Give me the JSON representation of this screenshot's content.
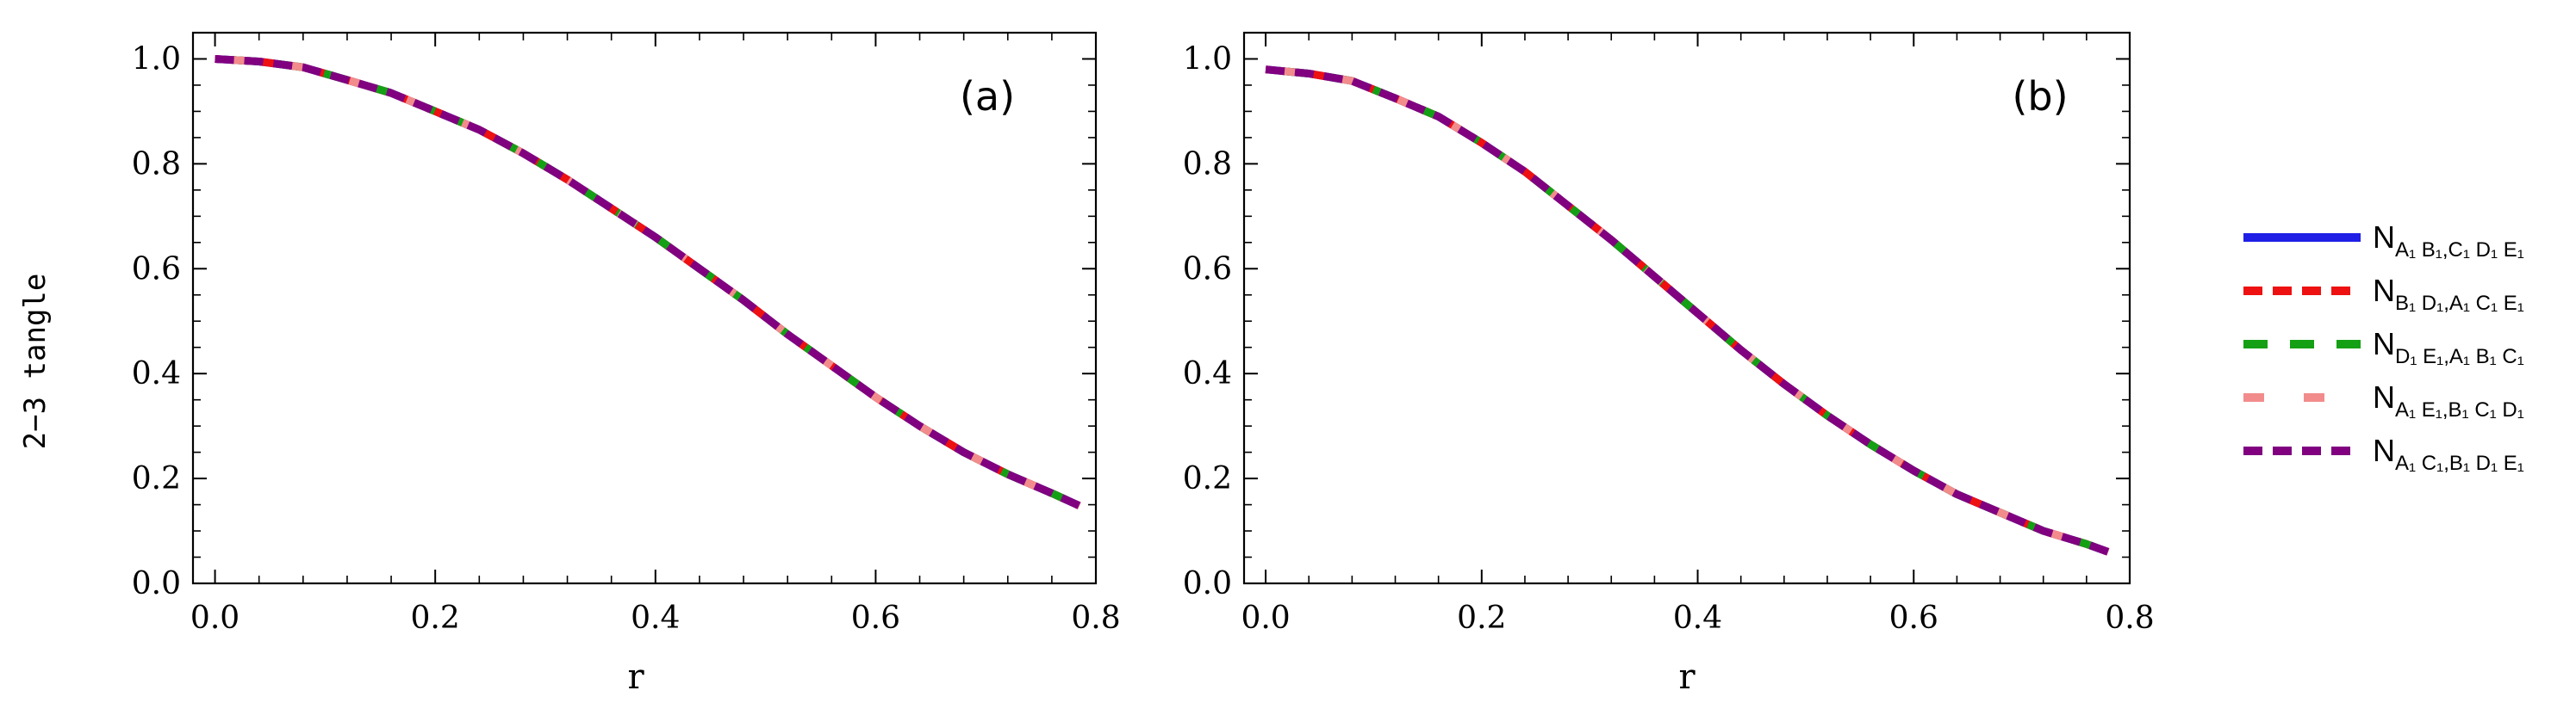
{
  "figure": {
    "ylabel": "2−3 tangle",
    "xlabel": "r",
    "legend_placement": "right"
  },
  "legend": [
    {
      "id": "s1",
      "label": "N",
      "sub": "A₁ B₁,C₁ D₁ E₁",
      "color": "#1f1fe6",
      "style": "solid"
    },
    {
      "id": "s2",
      "label": "N",
      "sub": "B₁ D₁,A₁ C₁ E₁",
      "color": "#ee1111",
      "style": "dashed"
    },
    {
      "id": "s3",
      "label": "N",
      "sub": "D₁ E₁,A₁ B₁ C₁",
      "color": "#14a014",
      "style": "dashed-wide"
    },
    {
      "id": "s4",
      "label": "N",
      "sub": "A₁ E₁,B₁ C₁ D₁",
      "color": "#f28c8c",
      "style": "dashed-sparse"
    },
    {
      "id": "s5",
      "label": "N",
      "sub": "A₁ C₁,B₁ D₁ E₁",
      "color": "#800080",
      "style": "dashed"
    }
  ],
  "chart_data": [
    {
      "type": "line",
      "panel_label": "(a)",
      "xlabel": "r",
      "ylabel": "2−3 tangle",
      "xlim": [
        -0.02,
        0.8
      ],
      "ylim": [
        0.0,
        1.05
      ],
      "xticks": [
        "0.0",
        "0.2",
        "0.4",
        "0.6",
        "0.8"
      ],
      "yticks": [
        "0.0",
        "0.2",
        "0.4",
        "0.6",
        "0.8",
        "1.0"
      ],
      "x": [
        0.0,
        0.04,
        0.08,
        0.12,
        0.16,
        0.2,
        0.24,
        0.28,
        0.32,
        0.36,
        0.4,
        0.44,
        0.48,
        0.52,
        0.56,
        0.6,
        0.64,
        0.68,
        0.72,
        0.76,
        0.785
      ],
      "series": [
        {
          "name": "N_{A1B1,C1D1E1}",
          "values": [
            1.0,
            0.995,
            0.984,
            0.96,
            0.935,
            0.9,
            0.865,
            0.82,
            0.77,
            0.715,
            0.66,
            0.6,
            0.54,
            0.475,
            0.415,
            0.355,
            0.3,
            0.25,
            0.208,
            0.172,
            0.148
          ]
        },
        {
          "name": "N_{B1D1,A1C1E1}",
          "values": [
            1.0,
            0.995,
            0.984,
            0.96,
            0.935,
            0.9,
            0.865,
            0.82,
            0.77,
            0.715,
            0.66,
            0.6,
            0.54,
            0.475,
            0.415,
            0.355,
            0.3,
            0.25,
            0.208,
            0.172,
            0.148
          ]
        },
        {
          "name": "N_{D1E1,A1B1C1}",
          "values": [
            1.0,
            0.995,
            0.984,
            0.96,
            0.935,
            0.9,
            0.865,
            0.82,
            0.77,
            0.715,
            0.66,
            0.6,
            0.54,
            0.475,
            0.415,
            0.355,
            0.3,
            0.25,
            0.208,
            0.172,
            0.148
          ]
        },
        {
          "name": "N_{A1E1,B1C1D1}",
          "values": [
            1.0,
            0.995,
            0.984,
            0.96,
            0.935,
            0.9,
            0.865,
            0.82,
            0.77,
            0.715,
            0.66,
            0.6,
            0.54,
            0.475,
            0.415,
            0.355,
            0.3,
            0.25,
            0.208,
            0.172,
            0.148
          ]
        },
        {
          "name": "N_{A1C1,B1D1E1}",
          "values": [
            1.0,
            0.995,
            0.984,
            0.96,
            0.935,
            0.9,
            0.865,
            0.82,
            0.77,
            0.715,
            0.66,
            0.6,
            0.54,
            0.475,
            0.415,
            0.355,
            0.3,
            0.25,
            0.208,
            0.172,
            0.148
          ]
        }
      ]
    },
    {
      "type": "line",
      "panel_label": "(b)",
      "xlabel": "r",
      "ylabel": "",
      "xlim": [
        -0.02,
        0.8
      ],
      "ylim": [
        0.0,
        1.05
      ],
      "xticks": [
        "0.0",
        "0.2",
        "0.4",
        "0.6",
        "0.8"
      ],
      "yticks": [
        "0.0",
        "0.2",
        "0.4",
        "0.6",
        "0.8",
        "1.0"
      ],
      "x": [
        0.0,
        0.04,
        0.08,
        0.12,
        0.16,
        0.2,
        0.24,
        0.28,
        0.32,
        0.36,
        0.4,
        0.44,
        0.48,
        0.52,
        0.56,
        0.6,
        0.64,
        0.68,
        0.72,
        0.76,
        0.78
      ],
      "series": [
        {
          "name": "N_{A1B1,C1D1E1}",
          "values": [
            0.98,
            0.972,
            0.958,
            0.925,
            0.89,
            0.84,
            0.785,
            0.72,
            0.655,
            0.585,
            0.515,
            0.445,
            0.38,
            0.32,
            0.265,
            0.215,
            0.17,
            0.135,
            0.1,
            0.075,
            0.06
          ]
        },
        {
          "name": "N_{B1D1,A1C1E1}",
          "values": [
            0.98,
            0.972,
            0.958,
            0.925,
            0.89,
            0.84,
            0.785,
            0.72,
            0.655,
            0.585,
            0.515,
            0.445,
            0.38,
            0.32,
            0.265,
            0.215,
            0.17,
            0.135,
            0.1,
            0.075,
            0.06
          ]
        },
        {
          "name": "N_{D1E1,A1B1C1}",
          "values": [
            0.98,
            0.972,
            0.958,
            0.925,
            0.89,
            0.84,
            0.785,
            0.72,
            0.655,
            0.585,
            0.515,
            0.445,
            0.38,
            0.32,
            0.265,
            0.215,
            0.17,
            0.135,
            0.1,
            0.075,
            0.06
          ]
        },
        {
          "name": "N_{A1E1,B1C1D1}",
          "values": [
            0.98,
            0.972,
            0.958,
            0.925,
            0.89,
            0.84,
            0.785,
            0.72,
            0.655,
            0.585,
            0.515,
            0.445,
            0.38,
            0.32,
            0.265,
            0.215,
            0.17,
            0.135,
            0.1,
            0.075,
            0.06
          ]
        },
        {
          "name": "N_{A1C1,B1D1E1}",
          "values": [
            0.98,
            0.972,
            0.958,
            0.925,
            0.89,
            0.84,
            0.785,
            0.72,
            0.655,
            0.585,
            0.515,
            0.445,
            0.38,
            0.32,
            0.265,
            0.215,
            0.17,
            0.135,
            0.1,
            0.075,
            0.06
          ]
        }
      ]
    }
  ]
}
